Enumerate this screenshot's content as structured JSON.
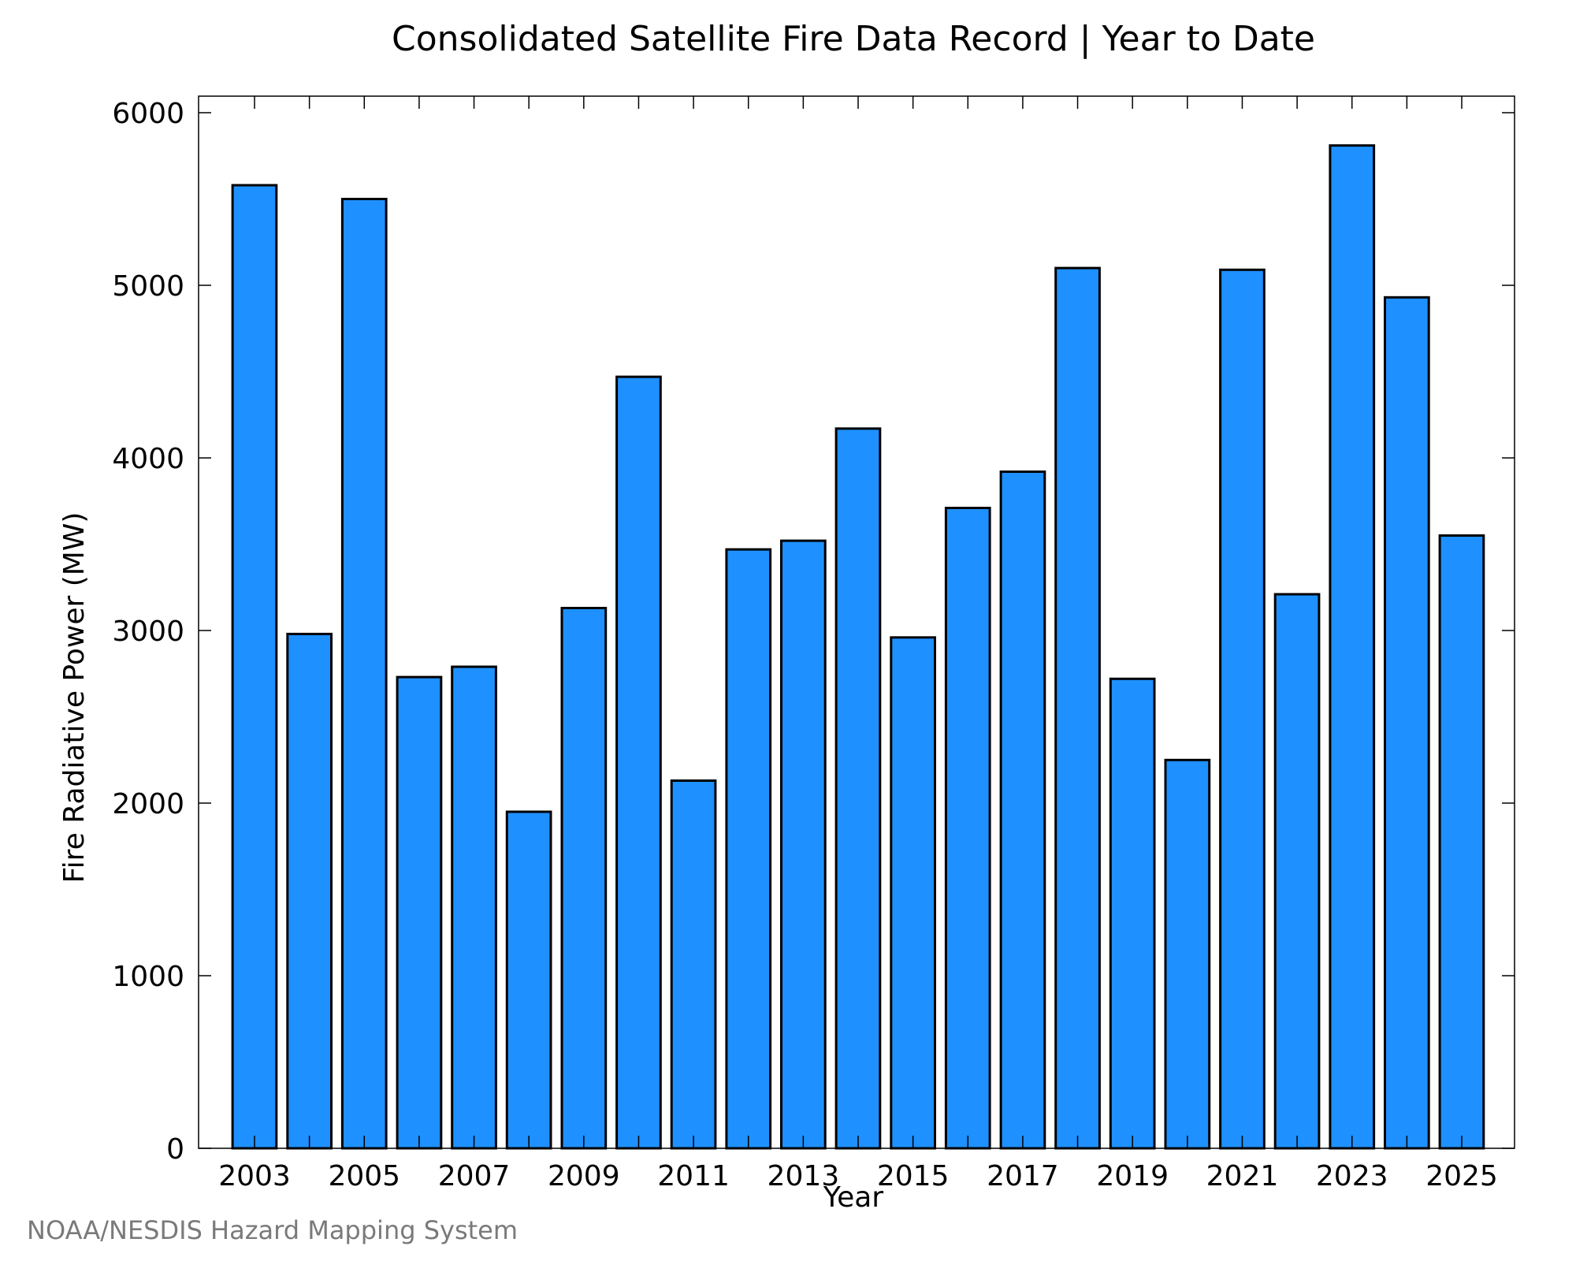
{
  "chart_data": {
    "type": "bar",
    "title": "Consolidated Satellite Fire Data Record | Year to Date",
    "xlabel": "Year",
    "ylabel": "Fire Radiative Power (MW)",
    "ylim": [
      0,
      6000
    ],
    "yticks": [
      0,
      1000,
      2000,
      3000,
      4000,
      5000,
      6000
    ],
    "xtick_labels": [
      "2003",
      "2005",
      "2007",
      "2009",
      "2011",
      "2013",
      "2015",
      "2017",
      "2019",
      "2021",
      "2023",
      "2025"
    ],
    "categories": [
      "2003",
      "2004",
      "2005",
      "2006",
      "2007",
      "2008",
      "2009",
      "2010",
      "2011",
      "2012",
      "2013",
      "2014",
      "2015",
      "2016",
      "2017",
      "2018",
      "2019",
      "2020",
      "2021",
      "2022",
      "2023",
      "2024",
      "2025"
    ],
    "values": [
      5580,
      2980,
      5500,
      2730,
      2790,
      1950,
      3130,
      4470,
      2130,
      3470,
      3520,
      4170,
      2960,
      3710,
      3920,
      5100,
      2720,
      2250,
      5090,
      3210,
      5810,
      4930,
      3550
    ],
    "bar_color": "#1E90FF",
    "bar_edge_color": "#000000",
    "grid": false,
    "legend": "none"
  },
  "credit": "NOAA/NESDIS Hazard Mapping System"
}
